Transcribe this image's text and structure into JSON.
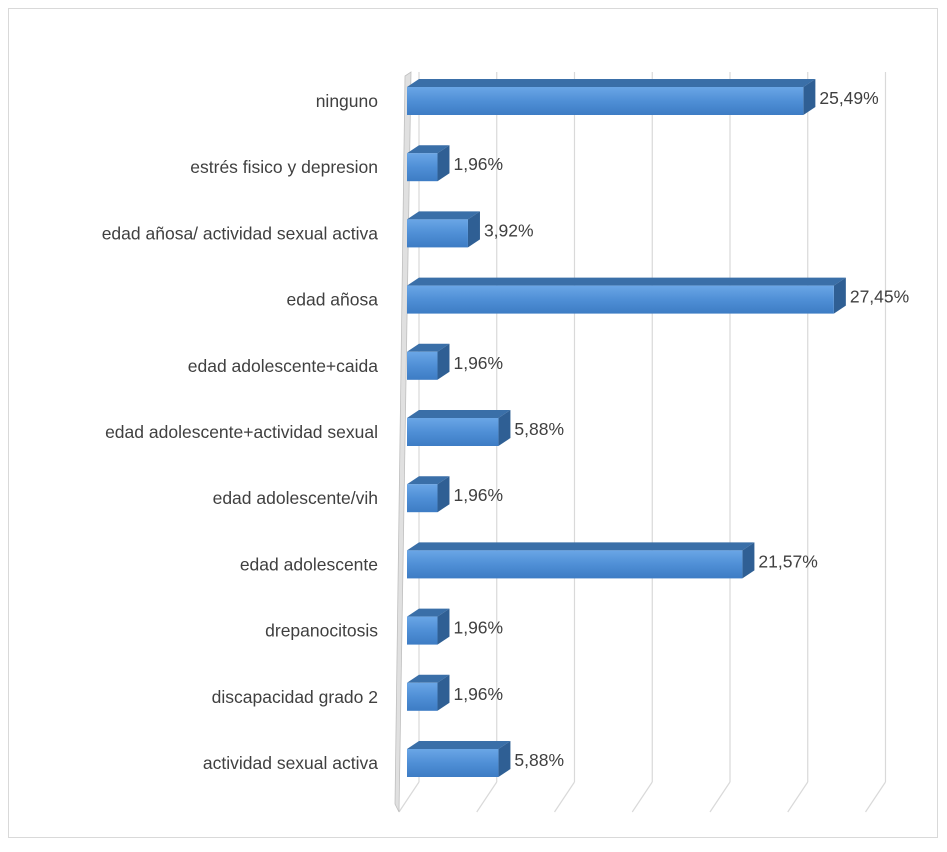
{
  "chart_data": {
    "type": "bar",
    "orientation": "horizontal",
    "style": "3d",
    "title": "",
    "xlabel": "",
    "ylabel": "",
    "xlim": [
      0,
      30
    ],
    "grid": true,
    "legend": "none",
    "bar_color": "#4f8fd6",
    "categories": [
      "ninguno",
      "estrés fisico y depresion",
      "edad añosa/ actividad sexual activa",
      "edad añosa",
      "edad adolescente+caida",
      "edad adolescente+actividad sexual",
      "edad adolescente/vih",
      "edad adolescente",
      "drepanocitosis",
      "discapacidad grado 2",
      "actividad sexual activa"
    ],
    "values": [
      25.49,
      1.96,
      3.92,
      27.45,
      1.96,
      5.88,
      1.96,
      21.57,
      1.96,
      1.96,
      5.88
    ],
    "value_labels": [
      "25,49%",
      "1,96%",
      "3,92%",
      "27,45%",
      "1,96%",
      "5,88%",
      "1,96%",
      "21,57%",
      "1,96%",
      "1,96%",
      "5,88%"
    ]
  }
}
